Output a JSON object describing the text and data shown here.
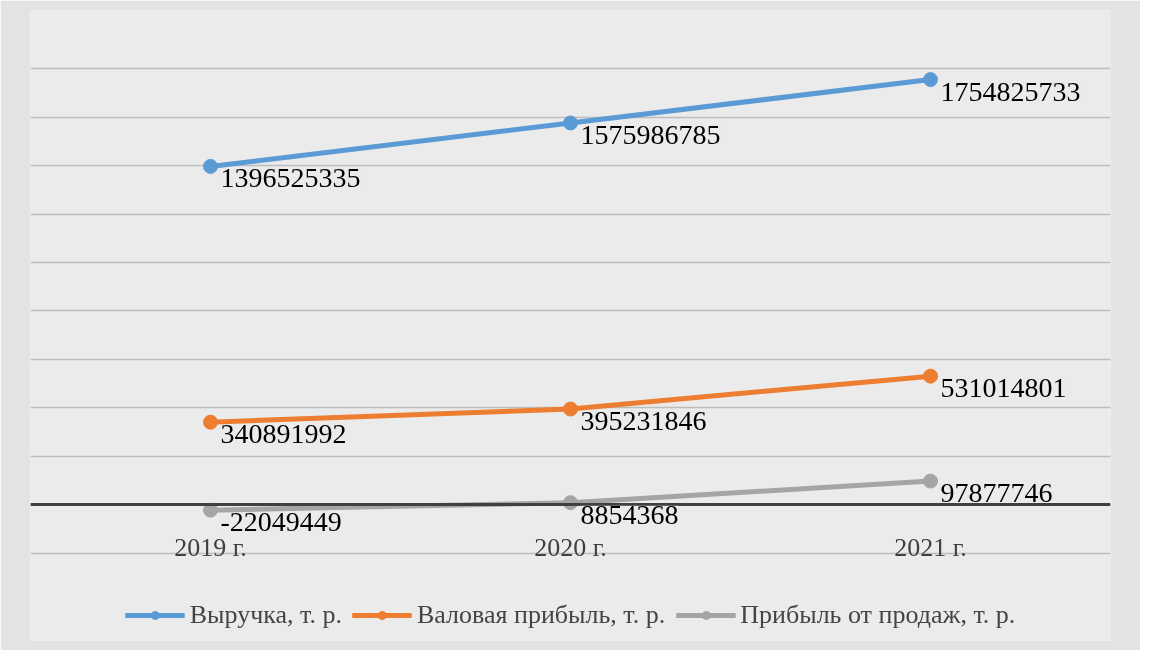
{
  "chart_data": {
    "type": "line",
    "categories": [
      "2019 г.",
      "2020 г.",
      "2021 г."
    ],
    "series": [
      {
        "name": "Выручка, т. р.",
        "color": "#5b9bd5",
        "values": [
          1396525335,
          1575986785,
          1754825733
        ]
      },
      {
        "name": "Валовая прибыль, т. р.",
        "color": "#ed7d31",
        "values": [
          340891992,
          395231846,
          531014801
        ]
      },
      {
        "name": "Прибыль от продаж, т. р.",
        "color": "#a5a5a5",
        "values": [
          -22049449,
          8854368,
          97877746
        ]
      }
    ],
    "ylim": [
      -200000000,
      1800000000
    ],
    "yticks": [
      {
        "value": -200000000,
        "label": null
      },
      {
        "value": 0,
        "label": null
      },
      {
        "value": 200000000,
        "label": null
      },
      {
        "value": 400000000,
        "label": null
      },
      {
        "value": 600000000,
        "label": null
      },
      {
        "value": 800000000,
        "label": null
      },
      {
        "value": 1000000000,
        "label": null
      },
      {
        "value": 1200000000,
        "label": null
      },
      {
        "value": 1400000000,
        "label": null
      },
      {
        "value": 1600000000,
        "label": null
      },
      {
        "value": 1800000000,
        "label": null
      }
    ],
    "tick_labels": "x",
    "grid": "y",
    "data_labels": true,
    "marker": "circle",
    "line_style": "solid",
    "legend": "bottom"
  }
}
